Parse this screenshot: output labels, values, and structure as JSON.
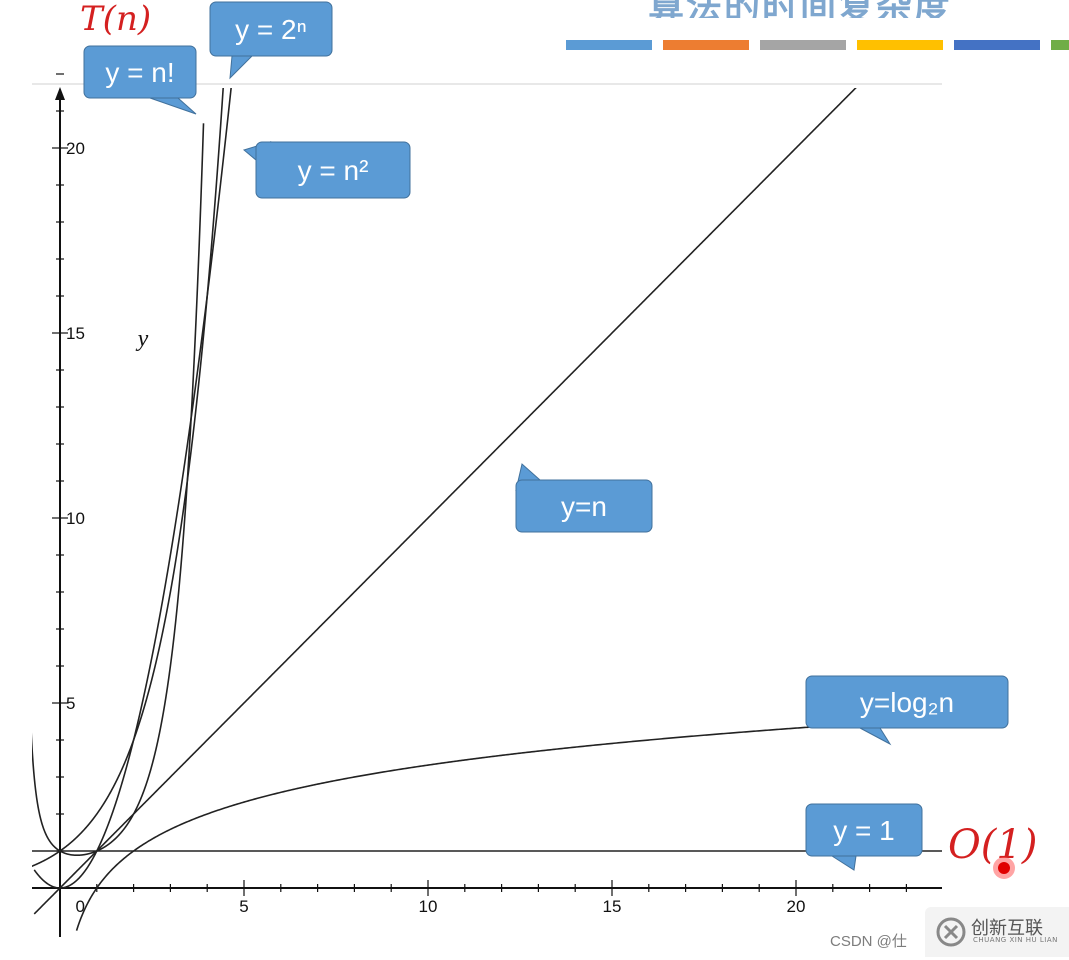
{
  "header": {
    "title": "算法的时间复杂度",
    "accent_colors": [
      "#5b9bd5",
      "#ed7d31",
      "#a5a5a5",
      "#ffc000",
      "#4472c4",
      "#70ad47"
    ]
  },
  "chart_data": {
    "type": "line",
    "title": "",
    "xlabel": "",
    "ylabel": "y",
    "xlim": [
      -1,
      24
    ],
    "ylim": [
      -1,
      23
    ],
    "x_ticks": [
      5,
      10,
      15,
      20
    ],
    "y_ticks": [
      5,
      10,
      15,
      20
    ],
    "origin_label": "0",
    "grid": false,
    "series": [
      {
        "name": "y = n!",
        "function": "factorial",
        "label_color": "#5b9bd5"
      },
      {
        "name": "y = 2ⁿ",
        "function": "exp2",
        "label_color": "#5b9bd5"
      },
      {
        "name": "y = n²",
        "function": "square",
        "label_color": "#5b9bd5"
      },
      {
        "name": "y=n",
        "function": "linear",
        "label_color": "#5b9bd5"
      },
      {
        "name": "y=log₂n",
        "function": "log2",
        "label_color": "#5b9bd5"
      },
      {
        "name": "y = 1",
        "function": "constant",
        "label_color": "#5b9bd5"
      }
    ],
    "annotations": [
      {
        "text": "T(n)",
        "color": "#d42020"
      },
      {
        "text": "O(1)",
        "color": "#d42020"
      }
    ]
  },
  "watermark": {
    "text": "CSDN @仕",
    "brand": "创新互联",
    "brand_sub": "CHUANG XIN HU LIAN"
  }
}
